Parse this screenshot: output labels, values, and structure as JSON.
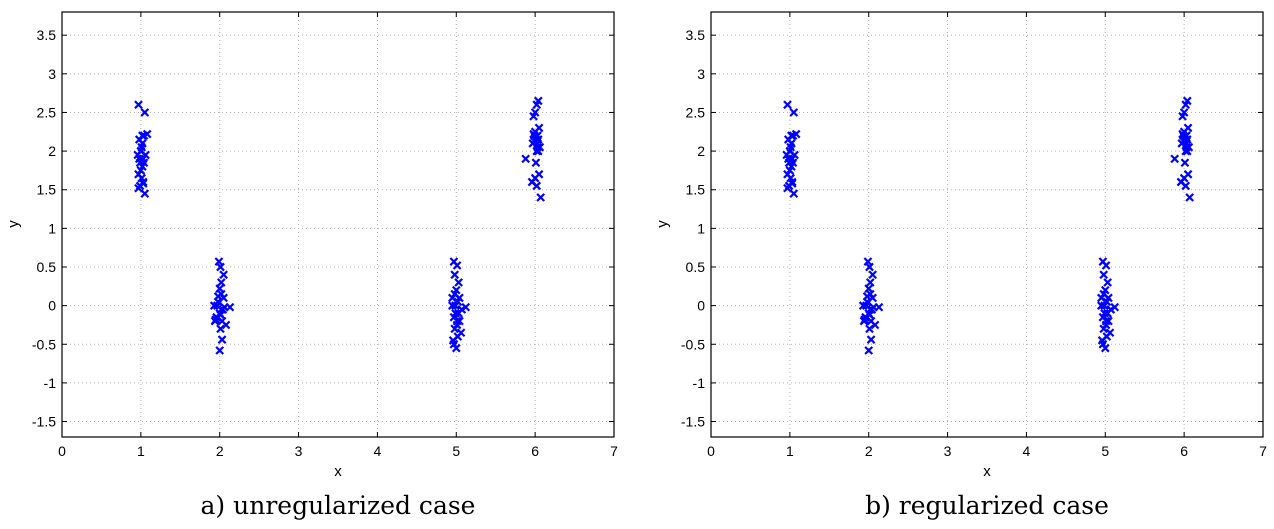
{
  "chart_data": [
    {
      "type": "scatter",
      "caption": "a) unregularized case",
      "xlabel": "x",
      "ylabel": "y",
      "xlim": [
        0,
        7
      ],
      "ylim": [
        -1.7,
        3.8
      ],
      "xticks": [
        "0",
        "1",
        "2",
        "3",
        "4",
        "5",
        "6",
        "7"
      ],
      "yticks": [
        "-1.5",
        "-1",
        "-0.5",
        "0",
        "0.5",
        "1",
        "1.5",
        "2",
        "2.5",
        "3",
        "3.5"
      ],
      "grid": true,
      "marker": "x",
      "color": "#0000ff",
      "x": [
        0.97,
        1.05,
        1.02,
        0.98,
        1.01,
        1.04,
        1.08,
        1.0,
        0.96,
        1.03,
        1.06,
        0.99,
        1.02,
        1.0,
        0.97,
        1.01,
        1.03,
        0.99,
        1.05,
        1.02,
        0.98,
        1.04,
        1.0,
        0.97,
        1.03,
        1.93,
        1.98,
        2.02,
        2.05,
        2.0,
        1.96,
        2.03,
        2.08,
        2.01,
        1.95,
        2.02,
        2.0,
        1.97,
        2.04,
        2.06,
        2.01,
        1.94,
        2.03,
        2.0,
        2.02,
        1.98,
        2.13,
        2.05,
        2.01,
        1.99,
        4.97,
        5.01,
        4.98,
        5.03,
        5.0,
        4.95,
        5.02,
        5.07,
        4.99,
        4.97,
        5.04,
        5.01,
        4.98,
        5.06,
        5.02,
        4.96,
        5.0,
        5.03,
        4.98,
        5.12,
        4.95,
        5.01,
        4.99,
        5.04,
        4.97,
        5.88,
        6.02,
        6.04,
        6.0,
        5.98,
        6.05,
        6.03,
        6.01,
        5.97,
        6.06,
        6.02,
        6.0,
        6.04,
        5.99,
        6.03,
        6.01,
        6.05,
        5.96,
        6.02,
        6.07,
        6.0,
        6.03,
        6.01,
        5.98,
        6.04
      ],
      "y": [
        2.6,
        2.5,
        2.2,
        2.15,
        2.05,
        2.2,
        2.22,
        2.0,
        1.95,
        1.9,
        1.95,
        1.85,
        1.8,
        1.75,
        1.7,
        1.65,
        1.6,
        1.55,
        1.45,
        2.1,
        1.9,
        1.85,
        2.0,
        1.52,
        1.58,
        0.0,
        0.05,
        -0.05,
        0.1,
        -0.1,
        -0.15,
        -0.2,
        -0.25,
        -0.3,
        -0.18,
        0.15,
        0.22,
        0.0,
        -0.05,
        -0.02,
        -0.12,
        -0.2,
        -0.44,
        -0.58,
        0.3,
        0.12,
        -0.02,
        0.4,
        0.5,
        0.57,
        0.57,
        0.52,
        0.4,
        0.3,
        0.2,
        0.1,
        0.05,
        -0.05,
        -0.1,
        -0.15,
        -0.2,
        -0.25,
        -0.3,
        -0.35,
        -0.4,
        -0.45,
        -0.55,
        -0.1,
        0.15,
        -0.02,
        0.0,
        -0.2,
        0.0,
        0.1,
        -0.5,
        1.9,
        2.6,
        2.65,
        2.5,
        2.45,
        2.3,
        2.2,
        2.15,
        2.1,
        2.05,
        2.0,
        2.25,
        2.15,
        2.2,
        2.05,
        1.85,
        1.7,
        1.6,
        1.55,
        1.4,
        1.65,
        2.1,
        2.18,
        2.22,
        2.0
      ]
    },
    {
      "type": "scatter",
      "caption": "b) regularized case",
      "xlabel": "x",
      "ylabel": "y",
      "xlim": [
        0,
        7
      ],
      "ylim": [
        -1.7,
        3.8
      ],
      "xticks": [
        "0",
        "1",
        "2",
        "3",
        "4",
        "5",
        "6",
        "7"
      ],
      "yticks": [
        "-1.5",
        "-1",
        "-0.5",
        "0",
        "0.5",
        "1",
        "1.5",
        "2",
        "2.5",
        "3",
        "3.5"
      ],
      "grid": true,
      "marker": "x",
      "color": "#0000ff",
      "x": [
        0.97,
        1.05,
        1.02,
        0.98,
        1.01,
        1.04,
        1.08,
        1.0,
        0.96,
        1.03,
        1.06,
        0.99,
        1.02,
        1.0,
        0.97,
        1.01,
        1.03,
        0.99,
        1.05,
        1.02,
        0.98,
        1.04,
        1.0,
        0.97,
        1.03,
        1.93,
        1.98,
        2.02,
        2.05,
        2.0,
        1.96,
        2.03,
        2.08,
        2.01,
        1.95,
        2.02,
        2.0,
        1.97,
        2.04,
        2.06,
        2.01,
        1.94,
        2.03,
        2.0,
        2.02,
        1.98,
        2.13,
        2.05,
        2.01,
        1.99,
        4.97,
        5.01,
        4.98,
        5.03,
        5.0,
        4.95,
        5.02,
        5.07,
        4.99,
        4.97,
        5.04,
        5.01,
        4.98,
        5.06,
        5.02,
        4.96,
        5.0,
        5.03,
        4.98,
        5.12,
        4.95,
        5.01,
        4.99,
        5.04,
        4.97,
        5.88,
        6.02,
        6.04,
        6.0,
        5.98,
        6.05,
        6.03,
        6.01,
        5.97,
        6.06,
        6.02,
        6.0,
        6.04,
        5.99,
        6.03,
        6.01,
        6.05,
        5.96,
        6.02,
        6.07,
        6.0,
        6.03,
        6.01,
        5.98,
        6.04
      ],
      "y": [
        2.6,
        2.5,
        2.2,
        2.15,
        2.05,
        2.2,
        2.22,
        2.0,
        1.95,
        1.9,
        1.95,
        1.85,
        1.8,
        1.75,
        1.7,
        1.65,
        1.6,
        1.55,
        1.45,
        2.1,
        1.9,
        1.85,
        2.0,
        1.52,
        1.58,
        0.0,
        0.05,
        -0.05,
        0.1,
        -0.1,
        -0.15,
        -0.2,
        -0.25,
        -0.3,
        -0.18,
        0.15,
        0.22,
        0.0,
        -0.05,
        -0.02,
        -0.12,
        -0.2,
        -0.44,
        -0.58,
        0.3,
        0.12,
        -0.02,
        0.4,
        0.5,
        0.57,
        0.57,
        0.52,
        0.4,
        0.3,
        0.2,
        0.1,
        0.05,
        -0.05,
        -0.1,
        -0.15,
        -0.2,
        -0.25,
        -0.3,
        -0.35,
        -0.4,
        -0.45,
        -0.55,
        -0.1,
        0.15,
        -0.02,
        0.0,
        -0.2,
        0.0,
        0.1,
        -0.5,
        1.9,
        2.6,
        2.65,
        2.5,
        2.45,
        2.3,
        2.2,
        2.15,
        2.1,
        2.05,
        2.0,
        2.25,
        2.15,
        2.2,
        2.05,
        1.85,
        1.7,
        1.6,
        1.55,
        1.4,
        1.65,
        2.1,
        2.18,
        2.22,
        2.0
      ]
    }
  ]
}
